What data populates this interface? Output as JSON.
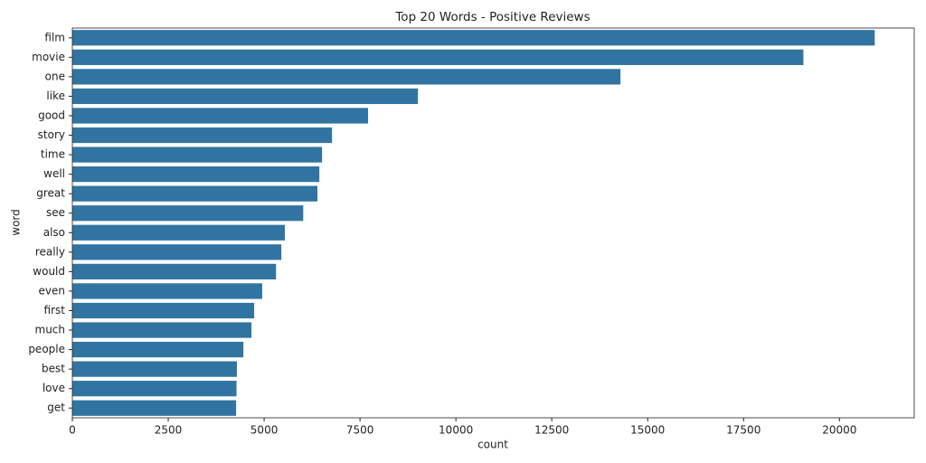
{
  "chart_data": {
    "type": "barh",
    "title": "Top 20 Words - Positive Reviews",
    "x_label": "count",
    "y_label": "word",
    "categories": [
      "film",
      "movie",
      "one",
      "like",
      "good",
      "story",
      "time",
      "well",
      "great",
      "see",
      "also",
      "really",
      "would",
      "even",
      "first",
      "much",
      "people",
      "best",
      "love",
      "get"
    ],
    "values": [
      20920,
      19060,
      14290,
      9010,
      7710,
      6770,
      6510,
      6440,
      6390,
      6020,
      5540,
      5450,
      5310,
      4950,
      4740,
      4670,
      4460,
      4290,
      4280,
      4270
    ],
    "color": "#3274a1",
    "xlim": [
      0,
      21950
    ],
    "xticks": [
      0,
      2500,
      5000,
      7500,
      10000,
      12500,
      15000,
      17500,
      20000
    ]
  }
}
